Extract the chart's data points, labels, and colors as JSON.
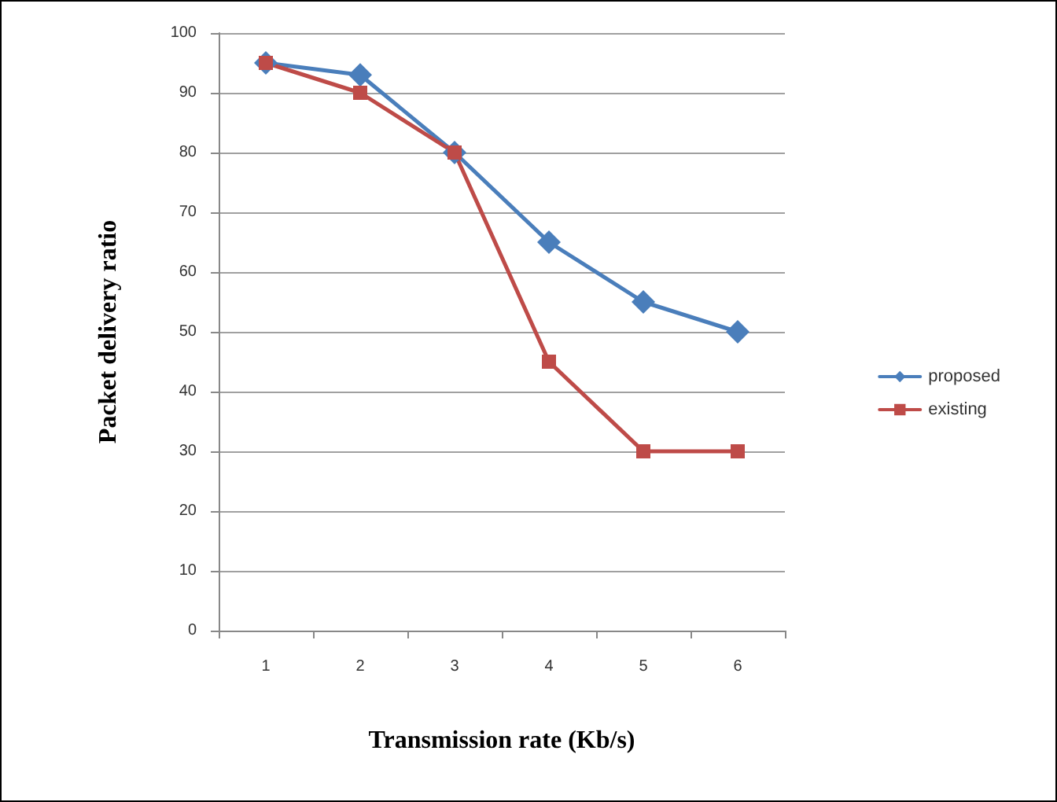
{
  "chart_data": {
    "type": "line",
    "xlabel": "Transmission rate (Kb/s)",
    "ylabel": "Packet delivery ratio",
    "categories": [
      "1",
      "2",
      "3",
      "4",
      "5",
      "6"
    ],
    "series": [
      {
        "name": "proposed",
        "color": "#4a7ebb",
        "marker": "diamond",
        "values": [
          95,
          93,
          80,
          65,
          55,
          50
        ]
      },
      {
        "name": "existing",
        "color": "#be4b48",
        "marker": "square",
        "values": [
          95,
          90,
          80,
          45,
          30,
          30
        ]
      }
    ],
    "ylim": [
      0,
      100
    ],
    "yticks": [
      0,
      10,
      20,
      30,
      40,
      50,
      60,
      70,
      80,
      90,
      100
    ],
    "grid": "y",
    "legend": "right",
    "line_style": "solid"
  }
}
